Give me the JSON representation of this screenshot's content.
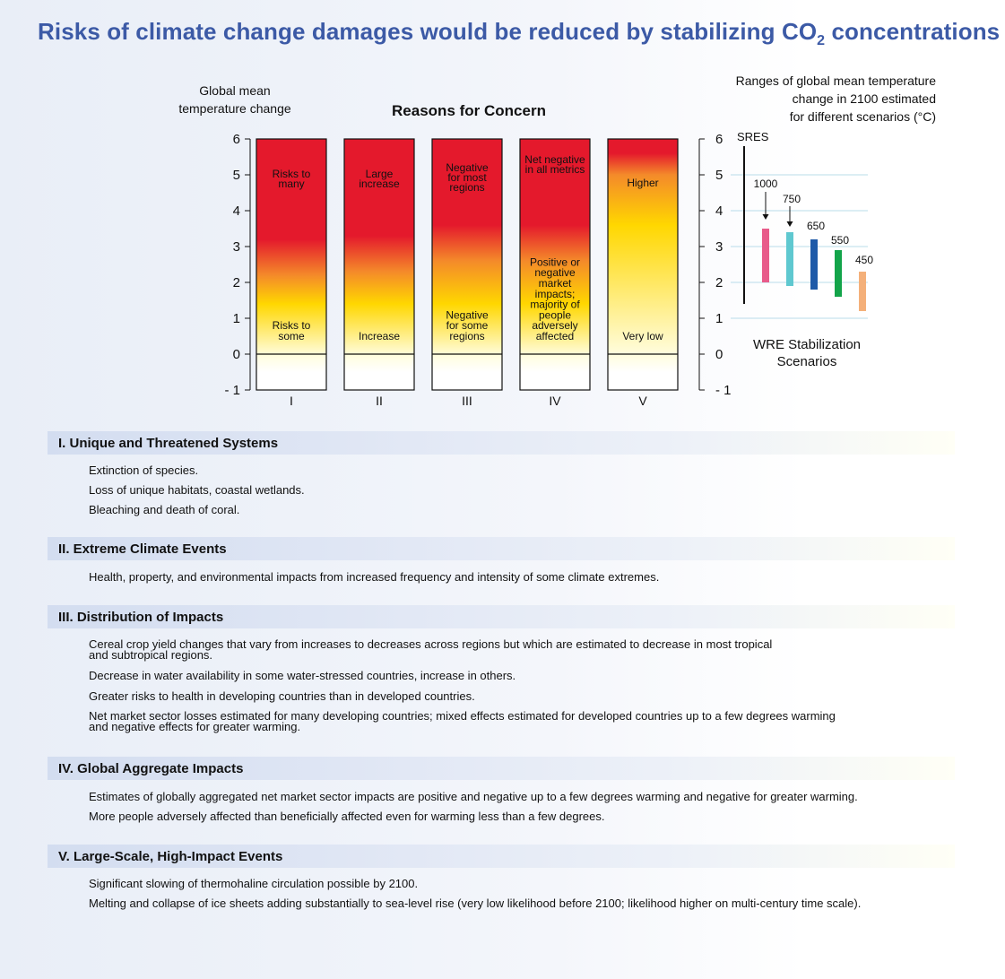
{
  "title_main": "Risks of climate change damages would be reduced by stabilizing CO",
  "title_sub": "2",
  "title_end": " concentrations",
  "chart_data": {
    "type": "bar",
    "title": "Reasons for Concern",
    "ylabel": [
      "Global mean",
      "temperature change"
    ],
    "ylim": [
      -1,
      6
    ],
    "yticks": [
      "6",
      "5",
      "4",
      "3",
      "2",
      "1",
      "0",
      "- 1"
    ],
    "categories": [
      "I",
      "II",
      "III",
      "IV",
      "V"
    ],
    "colors": {
      "high_risk": "#e4192c",
      "moderate": "#f48a2a",
      "low": "#ffd700",
      "very_low": "#fffde0"
    },
    "series": [
      {
        "top_label": [
          "Risks to",
          "many"
        ],
        "bottom_label": [
          "Risks to",
          "some"
        ],
        "red_from": 3.2,
        "fade_to": 0
      },
      {
        "top_label": [
          "Large",
          "increase"
        ],
        "bottom_label": [
          "Increase"
        ],
        "red_from": 3.3,
        "fade_to": 0
      },
      {
        "top_label": [
          "Negative",
          "for most",
          "regions"
        ],
        "bottom_label": [
          "Negative",
          "for some",
          "regions"
        ],
        "red_from": 3.6,
        "fade_to": 0
      },
      {
        "top_label": [
          "Net negative",
          "in all metrics"
        ],
        "bottom_label": [
          "Positive or",
          "negative",
          "market",
          "impacts;",
          "majority of",
          "people",
          "adversely",
          "affected"
        ],
        "red_from": 3.6,
        "fade_to": 0
      },
      {
        "top_label": [
          "Higher"
        ],
        "bottom_label": [
          "Very low"
        ],
        "red_from": 5.6,
        "fade_to": 0
      }
    ],
    "scenarios": {
      "title": [
        "Ranges of global mean temperature",
        "change in 2100 estimated",
        "for different scenarios (°C)"
      ],
      "sres": {
        "label": "SRES",
        "range": [
          1.4,
          5.8
        ]
      },
      "wre_label": [
        "WRE Stabilization",
        "Scenarios"
      ],
      "ranges": [
        {
          "name": "1000",
          "low": 2.0,
          "high": 3.5,
          "color": "#e85b8a"
        },
        {
          "name": "750",
          "low": 1.9,
          "high": 3.4,
          "color": "#5fc8d0"
        },
        {
          "name": "650",
          "low": 1.8,
          "high": 3.2,
          "color": "#1e5aa8"
        },
        {
          "name": "550",
          "low": 1.6,
          "high": 2.9,
          "color": "#13a44a"
        },
        {
          "name": "450",
          "low": 1.2,
          "high": 2.3,
          "color": "#f4b07a"
        }
      ]
    }
  },
  "sections": [
    {
      "title": "I. Unique and Threatened Systems",
      "items": [
        [
          "Extinction of species."
        ],
        [
          "Loss of unique habitats, coastal wetlands."
        ],
        [
          "Bleaching and death of coral."
        ]
      ]
    },
    {
      "title": "II. Extreme Climate Events",
      "items": [
        [
          "Health, property, and environmental impacts from increased frequency and intensity of some climate extremes."
        ]
      ]
    },
    {
      "title": "III. Distribution of Impacts",
      "items": [
        [
          "Cereal crop yield changes that vary from increases to decreases across regions but which are estimated to decrease in most tropical",
          "and subtropical regions."
        ],
        [
          "Decrease in water availability in some water-stressed countries, increase in others."
        ],
        [
          "Greater risks to health in developing countries than in developed countries."
        ],
        [
          "Net market sector losses estimated for many developing countries; mixed effects estimated for developed countries up to a few degrees warming",
          "and negative effects for greater warming."
        ]
      ]
    },
    {
      "title": "IV. Global Aggregate Impacts",
      "items": [
        [
          "Estimates of globally aggregated net market sector impacts are positive and negative up to a few degrees warming and negative for greater warming."
        ],
        [
          "More people adversely affected than beneficially affected even for warming less than a few degrees."
        ]
      ]
    },
    {
      "title": "V. Large-Scale, High-Impact Events",
      "items": [
        [
          "Significant slowing of thermohaline circulation possible by 2100."
        ],
        [
          "Melting and collapse of ice sheets adding substantially to sea-level rise (very low likelihood before 2100; likelihood higher on multi-century time scale)."
        ]
      ]
    }
  ]
}
